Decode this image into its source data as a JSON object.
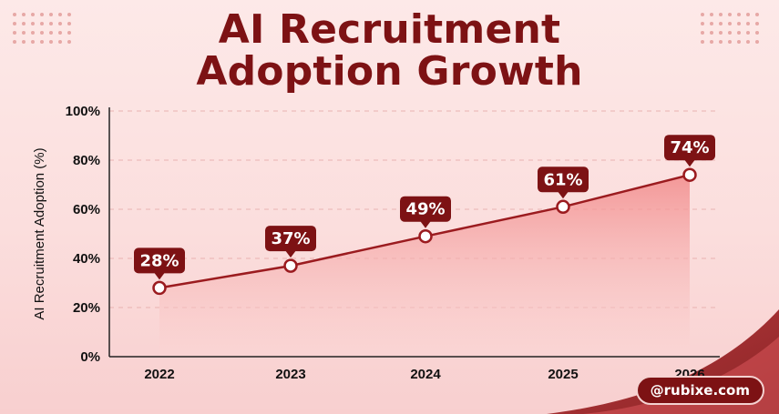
{
  "page": {
    "title_line1": "AI Recruitment",
    "title_line2": "Adoption Growth",
    "watermark": "@rubixe.com"
  },
  "colors": {
    "accent": "#7d1214",
    "line": "#9b1b1f",
    "area_top": "#f28b8b",
    "area_bottom": "#fbd6d5",
    "background": "#fde9e8"
  },
  "chart_data": {
    "type": "area",
    "title": "AI Recruitment Adoption Growth",
    "xlabel": "",
    "ylabel": "AI Recruitment Adoption (%)",
    "categories": [
      "2022",
      "2023",
      "2024",
      "2025",
      "2026"
    ],
    "values": [
      28,
      37,
      49,
      61,
      74
    ],
    "data_labels": [
      "28%",
      "37%",
      "49%",
      "61%",
      "74%"
    ],
    "ylim": [
      0,
      100
    ],
    "yticks": [
      0,
      20,
      40,
      60,
      80,
      100
    ],
    "ytick_labels": [
      "0%",
      "20%",
      "40%",
      "60%",
      "80%",
      "100%"
    ],
    "grid": true,
    "legend": "none"
  }
}
